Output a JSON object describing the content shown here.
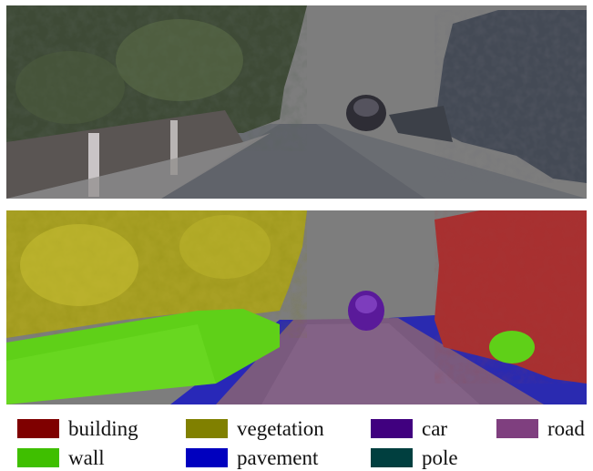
{
  "figure": {
    "top_panel": {
      "kind": "rgb-3d-reconstruction"
    },
    "bottom_panel": {
      "kind": "semantic-label-3d-reconstruction"
    }
  },
  "legend": {
    "items": [
      {
        "label": "building",
        "color": "#7f0000"
      },
      {
        "label": "vegetation",
        "color": "#808000"
      },
      {
        "label": "car",
        "color": "#40007f"
      },
      {
        "label": "road",
        "color": "#7f3f7f"
      },
      {
        "label": "wall",
        "color": "#3fbf00"
      },
      {
        "label": "pavement",
        "color": "#0000bf"
      },
      {
        "label": "pole",
        "color": "#003f3f"
      }
    ]
  }
}
